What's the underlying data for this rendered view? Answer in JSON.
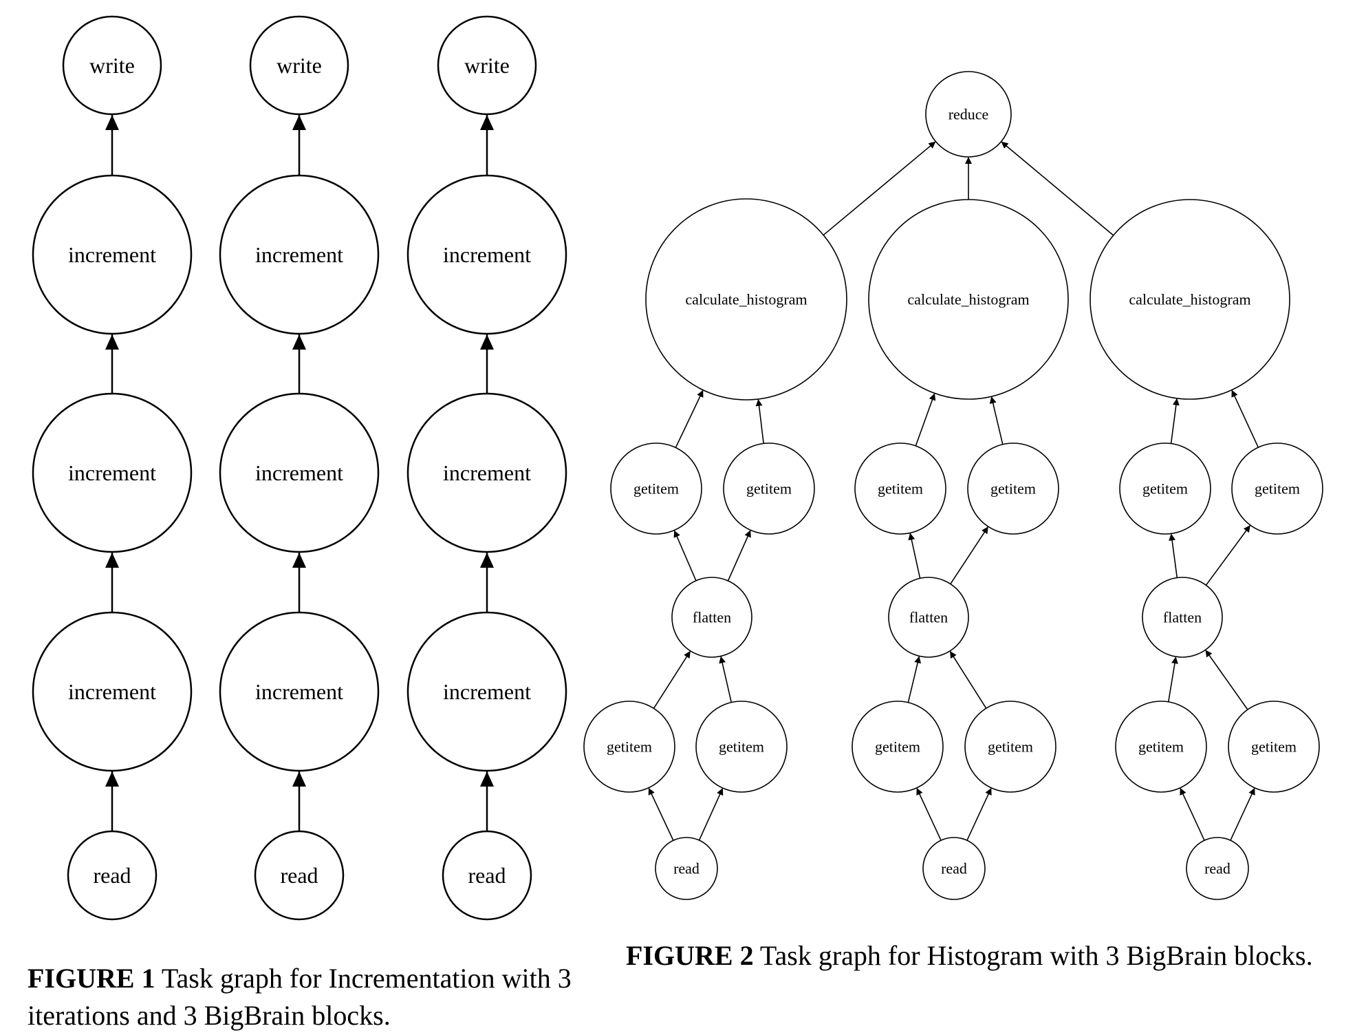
{
  "figures": [
    {
      "id": "fig1",
      "caption": {
        "label": "FIGURE 1",
        "text": "Task graph for Incrementation with 3 iterations and 3 BigBrain blocks."
      },
      "columns": 3,
      "nodes_bottom_to_top": [
        "read",
        "increment",
        "increment",
        "increment",
        "write"
      ]
    },
    {
      "id": "fig2",
      "caption": {
        "label": "FIGURE 2",
        "text": "Task graph for Histogram with 3 BigBrain blocks."
      },
      "root": "reduce",
      "branch": {
        "read": "read",
        "getitem_low": [
          "getitem",
          "getitem"
        ],
        "flatten": "flatten",
        "getitem_high": [
          "getitem",
          "getitem"
        ],
        "calc": "calculate_histogram"
      },
      "branches": 3
    }
  ]
}
